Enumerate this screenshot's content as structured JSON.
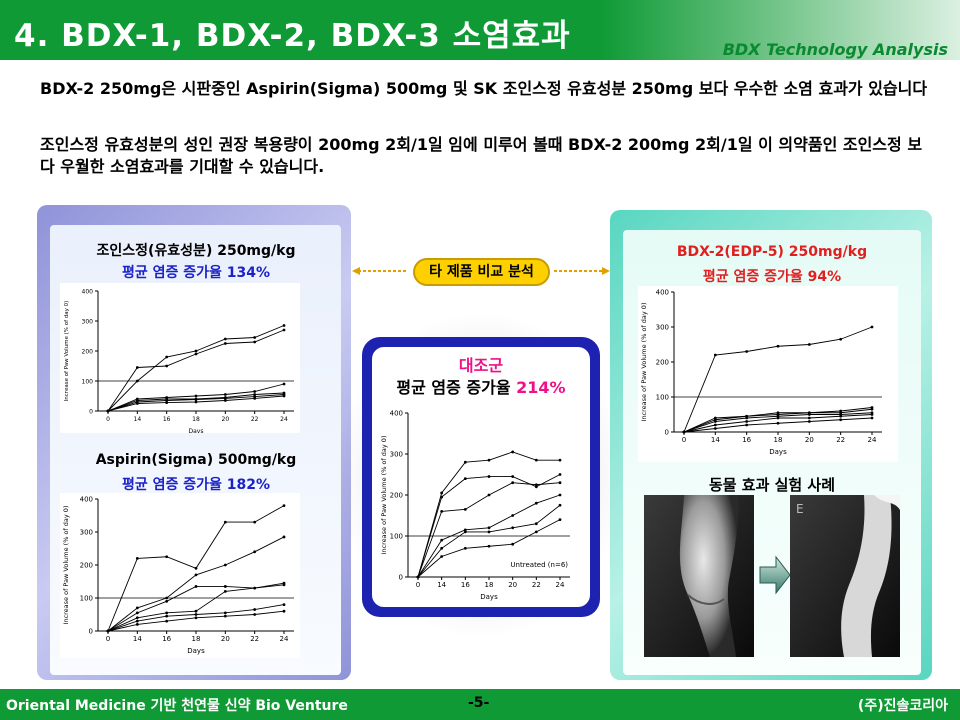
{
  "header": {
    "title": "4. BDX-1, BDX-2, BDX-3 소염효과",
    "subtitle": "BDX Technology Analysis"
  },
  "intro": {
    "p1": "BDX-2 250mg은 시판중인 Aspirin(Sigma) 500mg 및 SK 조인스정 유효성분 250mg 보다  우수한 소염 효과가 있습니다",
    "p2": "조인스정 유효성분의 성인 권장 복용량이 200mg 2회/1일 임에 미루어 볼때  BDX-2 200mg 2회/1일 이 의약품인 조인스정 보다 우월한 소염효과를 기대할 수  있습니다."
  },
  "comparison_badge": "타 제품 비교 분석",
  "colors": {
    "header_green": "#0f9a35",
    "highlight_blue": "#1a22c8",
    "highlight_pink": "#ee1188",
    "highlight_red": "#e02020"
  },
  "panels": {
    "joins": {
      "title": "조인스정(유효성분) 250mg/kg",
      "stat_label": "평균 염증 증가율",
      "stat_value": "134%"
    },
    "aspirin": {
      "title": "Aspirin(Sigma) 500mg/kg",
      "stat_label": "평균 염증 증가율",
      "stat_value": "182%"
    },
    "control": {
      "title": "대조군",
      "stat_label": "평균 염증 증가율",
      "stat_value": "214%"
    },
    "bdx2": {
      "title": "BDX-2(EDP-5) 250mg/kg",
      "stat_label": "평균 염증 증가율",
      "stat_value": "94%"
    },
    "photos": {
      "title": "동물 효과 실험 사례",
      "arrow_icon": "right-arrow-icon"
    }
  },
  "chart_data": [
    {
      "id": "joins",
      "type": "line",
      "x": [
        0,
        14,
        16,
        18,
        20,
        22,
        24
      ],
      "ylabel": "Increase of Paw Volume (% of day 0)",
      "xlabel": "Days",
      "ylim": [
        0,
        400
      ],
      "yticks": [
        0,
        100,
        200,
        300,
        400
      ],
      "reference_line": 100,
      "series": [
        {
          "values": [
            0,
            145,
            150,
            190,
            225,
            230,
            270
          ]
        },
        {
          "values": [
            0,
            100,
            180,
            200,
            240,
            245,
            285
          ]
        },
        {
          "values": [
            0,
            40,
            45,
            50,
            55,
            65,
            90
          ]
        },
        {
          "values": [
            0,
            35,
            40,
            40,
            45,
            55,
            60
          ]
        },
        {
          "values": [
            0,
            30,
            35,
            38,
            42,
            48,
            55
          ]
        },
        {
          "values": [
            0,
            25,
            28,
            30,
            35,
            42,
            50
          ]
        }
      ]
    },
    {
      "id": "aspirin",
      "type": "line",
      "x": [
        0,
        14,
        16,
        18,
        20,
        22,
        24
      ],
      "ylabel": "Increase of Paw Volume (% of day 0)",
      "xlabel": "Days",
      "ylim": [
        0,
        400
      ],
      "yticks": [
        0,
        100,
        200,
        300,
        400
      ],
      "reference_line": 100,
      "series": [
        {
          "values": [
            0,
            220,
            225,
            190,
            330,
            330,
            380
          ]
        },
        {
          "values": [
            0,
            70,
            100,
            170,
            200,
            240,
            285
          ]
        },
        {
          "values": [
            0,
            55,
            90,
            135,
            135,
            130,
            140
          ]
        },
        {
          "values": [
            0,
            40,
            55,
            60,
            120,
            130,
            145
          ]
        },
        {
          "values": [
            0,
            30,
            45,
            50,
            55,
            65,
            80
          ]
        },
        {
          "values": [
            0,
            20,
            30,
            40,
            45,
            50,
            60
          ]
        }
      ]
    },
    {
      "id": "control",
      "type": "line",
      "x": [
        0,
        14,
        16,
        18,
        20,
        22,
        24
      ],
      "ylabel": "Increase of Paw Volume (% of day 0)",
      "xlabel": "Days",
      "ylim": [
        0,
        400
      ],
      "yticks": [
        0,
        100,
        200,
        300,
        400
      ],
      "reference_line": 100,
      "annotation": "Untreated (n=6)",
      "series": [
        {
          "values": [
            0,
            205,
            280,
            285,
            305,
            285,
            285
          ]
        },
        {
          "values": [
            0,
            195,
            240,
            245,
            245,
            220,
            250
          ]
        },
        {
          "values": [
            0,
            160,
            165,
            200,
            230,
            225,
            230
          ]
        },
        {
          "values": [
            0,
            90,
            115,
            120,
            150,
            180,
            200
          ]
        },
        {
          "values": [
            0,
            70,
            110,
            110,
            120,
            130,
            175
          ]
        },
        {
          "values": [
            0,
            50,
            70,
            75,
            80,
            110,
            140
          ]
        }
      ]
    },
    {
      "id": "bdx2",
      "type": "line",
      "x": [
        0,
        14,
        16,
        18,
        20,
        22,
        24
      ],
      "ylabel": "Increase of Paw Volume (% of day 0)",
      "xlabel": "Days",
      "ylim": [
        0,
        400
      ],
      "yticks": [
        0,
        100,
        200,
        300,
        400
      ],
      "reference_line": 100,
      "series": [
        {
          "values": [
            0,
            220,
            230,
            245,
            250,
            265,
            300
          ]
        },
        {
          "values": [
            0,
            40,
            45,
            55,
            55,
            60,
            70
          ]
        },
        {
          "values": [
            0,
            35,
            45,
            50,
            55,
            55,
            65
          ]
        },
        {
          "values": [
            0,
            30,
            40,
            45,
            50,
            50,
            55
          ]
        },
        {
          "values": [
            0,
            20,
            30,
            40,
            40,
            45,
            50
          ]
        },
        {
          "values": [
            0,
            10,
            20,
            25,
            30,
            35,
            40
          ]
        }
      ]
    }
  ],
  "footer": {
    "left": "Oriental Medicine 기반 천연물 신약 Bio Venture",
    "page": "-5-",
    "right": "(주)진솔코리아"
  }
}
